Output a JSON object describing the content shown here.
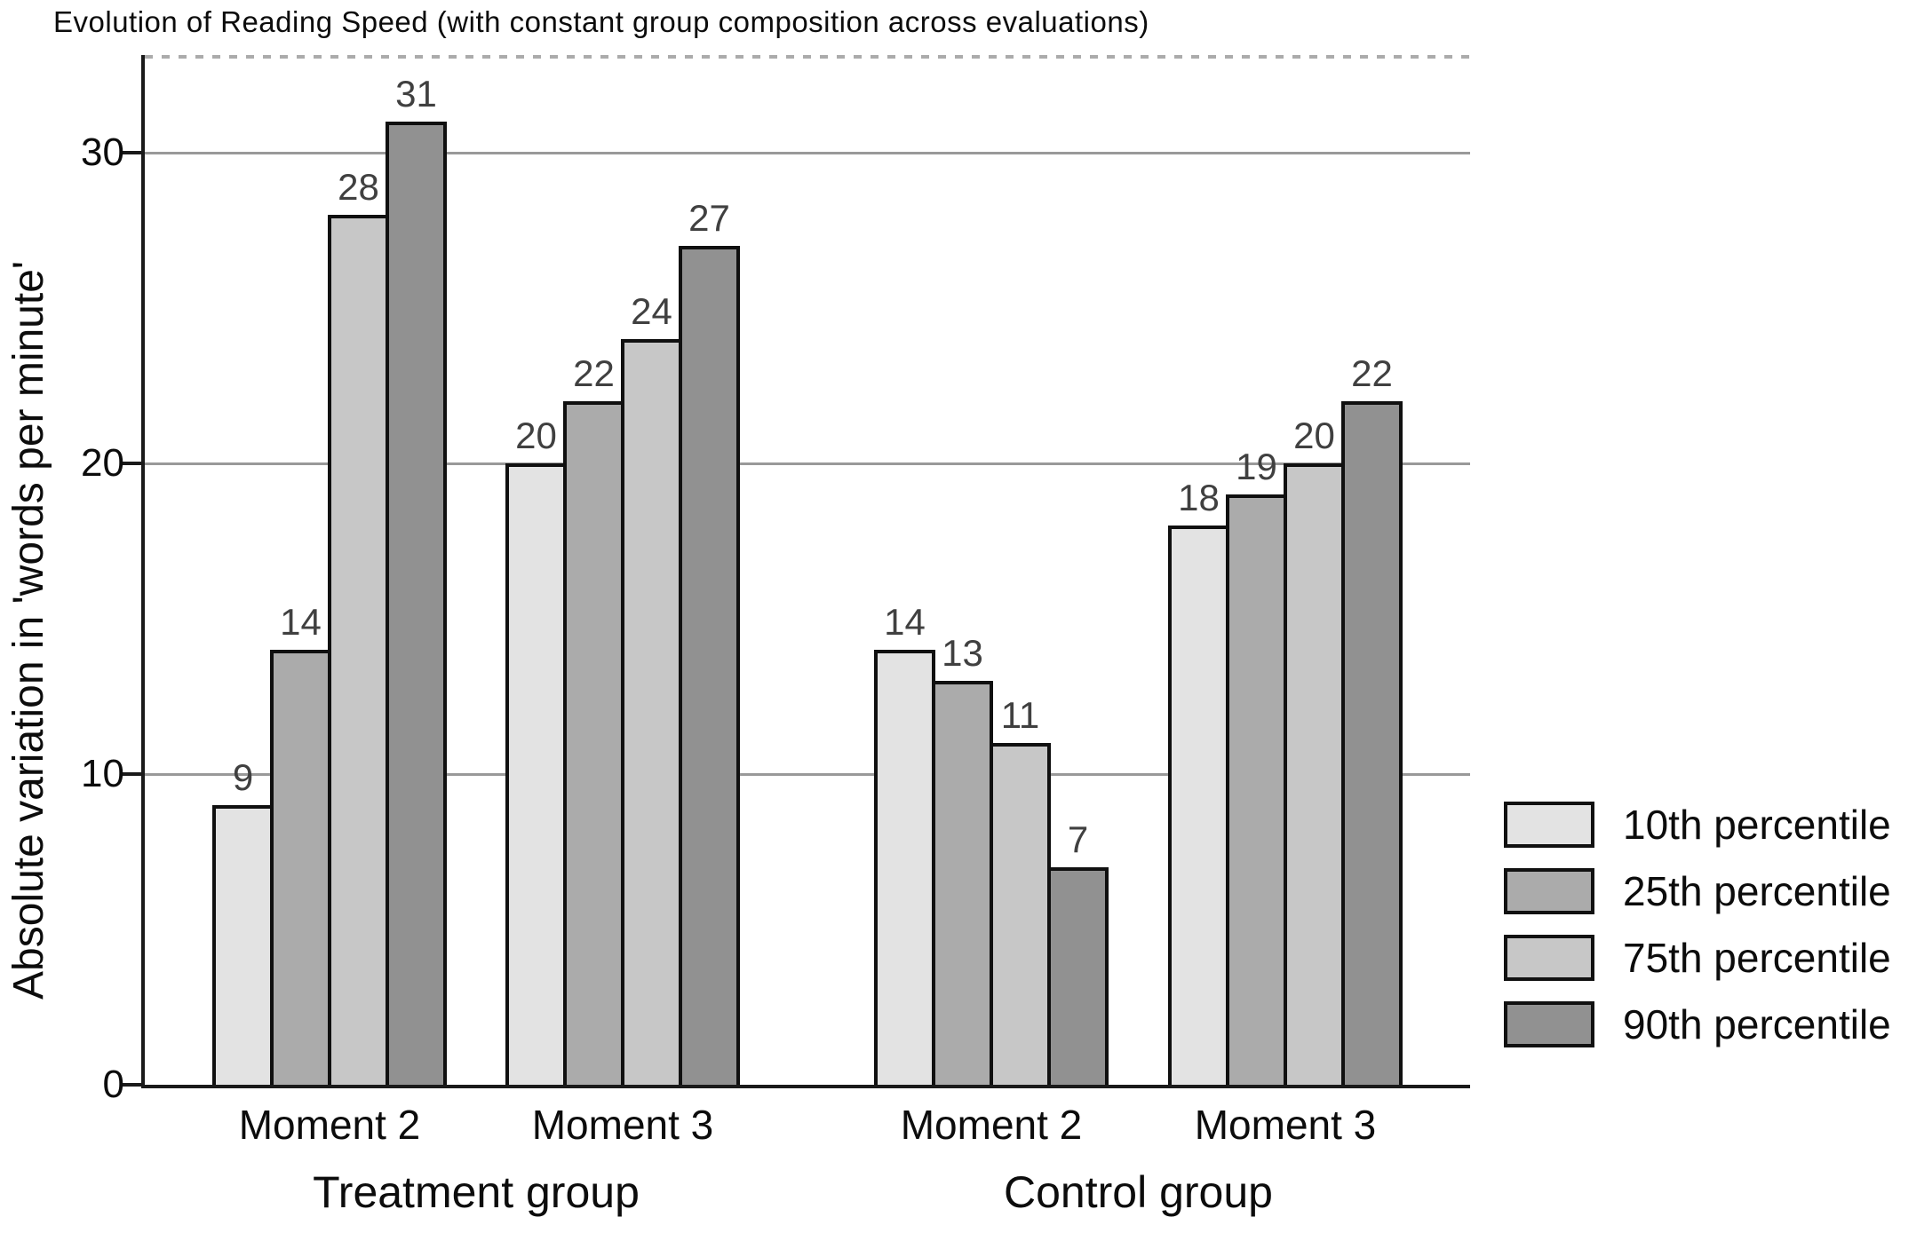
{
  "chart_data": {
    "type": "bar",
    "title": "Evolution of Reading Speed (with constant group composition across evaluations)",
    "ylabel": "Absolute variation in 'words per minute'",
    "xlabel": "",
    "ylim": [
      0,
      33
    ],
    "yticks": [
      0,
      10,
      20,
      30
    ],
    "grid": true,
    "legend_position": "right",
    "bar_value_labels_shown": true,
    "x_axis": {
      "moment_labels": [
        "Moment 2",
        "Moment 3",
        "Moment 2",
        "Moment 3"
      ],
      "group_labels": [
        "Treatment group",
        "Control group"
      ]
    },
    "categories": [
      "Treatment group / Moment 2",
      "Treatment group / Moment 3",
      "Control group / Moment 2",
      "Control group / Moment 3"
    ],
    "series": [
      {
        "name": "10th percentile",
        "color": "#e3e3e3",
        "values": [
          9,
          20,
          14,
          18
        ]
      },
      {
        "name": "25th percentile",
        "color": "#ababab",
        "values": [
          14,
          22,
          13,
          19
        ]
      },
      {
        "name": "75th percentile",
        "color": "#c7c7c7",
        "values": [
          28,
          24,
          11,
          20
        ]
      },
      {
        "name": "90th percentile",
        "color": "#919191",
        "values": [
          31,
          27,
          7,
          22
        ]
      }
    ],
    "colors": {
      "bar_border": "#101010",
      "axis": "#1a1a1a",
      "gridline": "#999999",
      "value_label": "#404040",
      "background": "#ffffff"
    }
  }
}
